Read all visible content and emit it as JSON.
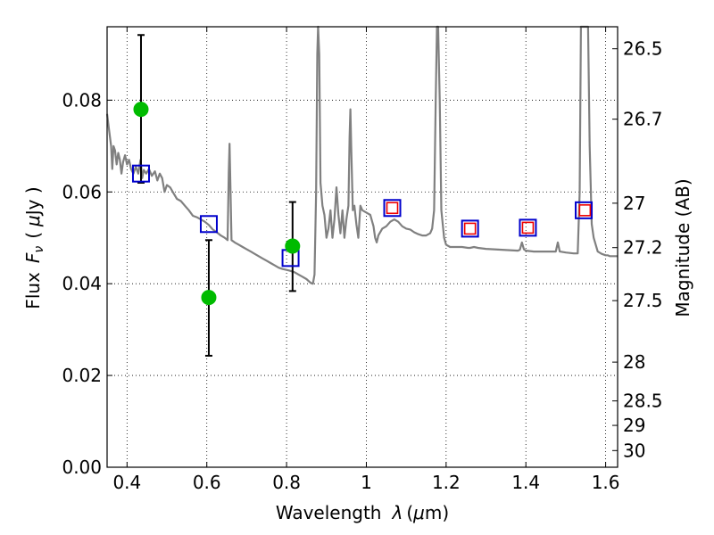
{
  "chart_data": {
    "type": "scatter",
    "xlabel": "Wavelength",
    "xlabel_symbol": "λ",
    "xlabel_unit_open": "(",
    "xlabel_unit_mu": "μ",
    "xlabel_unit_rest": "m)",
    "ylabel": "Flux",
    "ylabel_symbol": "F",
    "ylabel_subscript": "ν",
    "ylabel_unit_open": "(",
    "ylabel_unit_mu": "μ",
    "ylabel_unit_rest": "Jy )",
    "y2label": "Magnitude (AB)",
    "xlim": [
      0.35,
      1.63
    ],
    "ylim": [
      0.0,
      0.096
    ],
    "grid": true,
    "x_ticks": [
      {
        "value": 0.4,
        "label": "0.4"
      },
      {
        "value": 0.6,
        "label": "0.6"
      },
      {
        "value": 0.8,
        "label": "0.8"
      },
      {
        "value": 1.0,
        "label": "1"
      },
      {
        "value": 1.2,
        "label": "1.2"
      },
      {
        "value": 1.4,
        "label": "1.4"
      },
      {
        "value": 1.6,
        "label": "1.6"
      }
    ],
    "y_ticks": [
      {
        "value": 0.0,
        "label": "0.00"
      },
      {
        "value": 0.02,
        "label": "0.02"
      },
      {
        "value": 0.04,
        "label": "0.04"
      },
      {
        "value": 0.06,
        "label": "0.06"
      },
      {
        "value": 0.08,
        "label": "0.08"
      }
    ],
    "y2_ticks": [
      {
        "mag": 26.5,
        "label": "26.5"
      },
      {
        "mag": 26.7,
        "label": "26.7"
      },
      {
        "mag": 27.0,
        "label": "27"
      },
      {
        "mag": 27.2,
        "label": "27.2"
      },
      {
        "mag": 27.5,
        "label": "27.5"
      },
      {
        "mag": 28.0,
        "label": "28"
      },
      {
        "mag": 28.5,
        "label": "28.5"
      },
      {
        "mag": 29.0,
        "label": "29"
      },
      {
        "mag": 30.0,
        "label": "30"
      }
    ],
    "series": [
      {
        "kind": "model-sed",
        "color": "#808080",
        "points": [
          [
            0.35,
            0.077
          ],
          [
            0.355,
            0.0735
          ],
          [
            0.36,
            0.07
          ],
          [
            0.363,
            0.065
          ],
          [
            0.366,
            0.07
          ],
          [
            0.37,
            0.069
          ],
          [
            0.374,
            0.066
          ],
          [
            0.378,
            0.0685
          ],
          [
            0.382,
            0.067
          ],
          [
            0.386,
            0.064
          ],
          [
            0.39,
            0.0665
          ],
          [
            0.395,
            0.068
          ],
          [
            0.4,
            0.066
          ],
          [
            0.405,
            0.067
          ],
          [
            0.41,
            0.065
          ],
          [
            0.416,
            0.064
          ],
          [
            0.422,
            0.0655
          ],
          [
            0.428,
            0.064
          ],
          [
            0.434,
            0.067
          ],
          [
            0.438,
            0.063
          ],
          [
            0.442,
            0.0648
          ],
          [
            0.448,
            0.064
          ],
          [
            0.455,
            0.065
          ],
          [
            0.462,
            0.0635
          ],
          [
            0.47,
            0.0645
          ],
          [
            0.476,
            0.0625
          ],
          [
            0.482,
            0.064
          ],
          [
            0.488,
            0.063
          ],
          [
            0.494,
            0.06
          ],
          [
            0.5,
            0.0615
          ],
          [
            0.508,
            0.061
          ],
          [
            0.516,
            0.0598
          ],
          [
            0.525,
            0.0585
          ],
          [
            0.535,
            0.058
          ],
          [
            0.545,
            0.057
          ],
          [
            0.555,
            0.056
          ],
          [
            0.565,
            0.0548
          ],
          [
            0.575,
            0.0545
          ],
          [
            0.585,
            0.054
          ],
          [
            0.595,
            0.0535
          ],
          [
            0.605,
            0.0528
          ],
          [
            0.615,
            0.0518
          ],
          [
            0.625,
            0.0512
          ],
          [
            0.635,
            0.0505
          ],
          [
            0.645,
            0.05
          ],
          [
            0.652,
            0.0495
          ],
          [
            0.655,
            0.064
          ],
          [
            0.657,
            0.0705
          ],
          [
            0.659,
            0.062
          ],
          [
            0.662,
            0.0495
          ],
          [
            0.67,
            0.049
          ],
          [
            0.68,
            0.0485
          ],
          [
            0.69,
            0.048
          ],
          [
            0.7,
            0.0475
          ],
          [
            0.71,
            0.047
          ],
          [
            0.72,
            0.0465
          ],
          [
            0.73,
            0.046
          ],
          [
            0.74,
            0.0455
          ],
          [
            0.75,
            0.045
          ],
          [
            0.76,
            0.0445
          ],
          [
            0.77,
            0.044
          ],
          [
            0.78,
            0.0435
          ],
          [
            0.79,
            0.0432
          ],
          [
            0.8,
            0.043
          ],
          [
            0.81,
            0.0428
          ],
          [
            0.82,
            0.0425
          ],
          [
            0.83,
            0.042
          ],
          [
            0.84,
            0.0415
          ],
          [
            0.85,
            0.041
          ],
          [
            0.86,
            0.0402
          ],
          [
            0.866,
            0.04
          ],
          [
            0.87,
            0.042
          ],
          [
            0.874,
            0.06
          ],
          [
            0.877,
            0.09
          ],
          [
            0.879,
            0.096
          ],
          [
            0.882,
            0.09
          ],
          [
            0.885,
            0.062
          ],
          [
            0.89,
            0.057
          ],
          [
            0.895,
            0.055
          ],
          [
            0.9,
            0.05
          ],
          [
            0.905,
            0.052
          ],
          [
            0.91,
            0.056
          ],
          [
            0.915,
            0.05
          ],
          [
            0.92,
            0.054
          ],
          [
            0.925,
            0.061
          ],
          [
            0.93,
            0.055
          ],
          [
            0.935,
            0.051
          ],
          [
            0.94,
            0.056
          ],
          [
            0.945,
            0.05
          ],
          [
            0.95,
            0.054
          ],
          [
            0.955,
            0.057
          ],
          [
            0.958,
            0.072
          ],
          [
            0.96,
            0.078
          ],
          [
            0.962,
            0.07
          ],
          [
            0.966,
            0.056
          ],
          [
            0.97,
            0.057
          ],
          [
            0.975,
            0.053
          ],
          [
            0.98,
            0.05
          ],
          [
            0.985,
            0.057
          ],
          [
            0.99,
            0.056
          ],
          [
            1.0,
            0.0555
          ],
          [
            1.01,
            0.055
          ],
          [
            1.018,
            0.0525
          ],
          [
            1.022,
            0.05
          ],
          [
            1.026,
            0.049
          ],
          [
            1.03,
            0.0505
          ],
          [
            1.04,
            0.052
          ],
          [
            1.05,
            0.0525
          ],
          [
            1.06,
            0.0535
          ],
          [
            1.07,
            0.054
          ],
          [
            1.08,
            0.0535
          ],
          [
            1.09,
            0.0525
          ],
          [
            1.1,
            0.052
          ],
          [
            1.11,
            0.0518
          ],
          [
            1.12,
            0.0512
          ],
          [
            1.13,
            0.0508
          ],
          [
            1.14,
            0.0505
          ],
          [
            1.15,
            0.0505
          ],
          [
            1.16,
            0.051
          ],
          [
            1.165,
            0.052
          ],
          [
            1.17,
            0.056
          ],
          [
            1.174,
            0.08
          ],
          [
            1.177,
            0.096
          ],
          [
            1.18,
            0.096
          ],
          [
            1.184,
            0.08
          ],
          [
            1.188,
            0.056
          ],
          [
            1.195,
            0.05
          ],
          [
            1.2,
            0.0485
          ],
          [
            1.21,
            0.048
          ],
          [
            1.22,
            0.048
          ],
          [
            1.24,
            0.048
          ],
          [
            1.255,
            0.0478
          ],
          [
            1.26,
            0.0478
          ],
          [
            1.27,
            0.048
          ],
          [
            1.28,
            0.0478
          ],
          [
            1.3,
            0.0476
          ],
          [
            1.32,
            0.0475
          ],
          [
            1.34,
            0.0474
          ],
          [
            1.36,
            0.0473
          ],
          [
            1.38,
            0.0472
          ],
          [
            1.385,
            0.0474
          ],
          [
            1.39,
            0.049
          ],
          [
            1.395,
            0.0475
          ],
          [
            1.4,
            0.0472
          ],
          [
            1.42,
            0.047
          ],
          [
            1.44,
            0.047
          ],
          [
            1.46,
            0.047
          ],
          [
            1.475,
            0.047
          ],
          [
            1.48,
            0.049
          ],
          [
            1.485,
            0.047
          ],
          [
            1.5,
            0.0468
          ],
          [
            1.52,
            0.0466
          ],
          [
            1.53,
            0.0466
          ],
          [
            1.535,
            0.06
          ],
          [
            1.538,
            0.096
          ],
          [
            1.542,
            0.096
          ],
          [
            1.548,
            0.096
          ],
          [
            1.552,
            0.096
          ],
          [
            1.556,
            0.096
          ],
          [
            1.56,
            0.07
          ],
          [
            1.565,
            0.053
          ],
          [
            1.57,
            0.05
          ],
          [
            1.58,
            0.047
          ],
          [
            1.59,
            0.0465
          ],
          [
            1.6,
            0.0462
          ],
          [
            1.605,
            0.0462
          ],
          [
            1.61,
            0.046
          ],
          [
            1.62,
            0.046
          ],
          [
            1.63,
            0.046
          ]
        ]
      },
      {
        "kind": "observed",
        "marker": "filled-circle",
        "color": "#00bb00",
        "points": [
          {
            "x": 0.435,
            "y": 0.078,
            "yerr_low": 0.062,
            "yerr_high": 0.0942
          },
          {
            "x": 0.605,
            "y": 0.037,
            "yerr_low": 0.0243,
            "yerr_high": 0.0495
          },
          {
            "x": 0.815,
            "y": 0.0482,
            "yerr_low": 0.0384,
            "yerr_high": 0.0578
          }
        ]
      },
      {
        "kind": "model-band",
        "marker": "open-square",
        "color": "#0000cc",
        "points": [
          {
            "x": 0.435,
            "y": 0.064
          },
          {
            "x": 0.605,
            "y": 0.053
          },
          {
            "x": 0.81,
            "y": 0.0456
          },
          {
            "x": 1.065,
            "y": 0.0565
          },
          {
            "x": 1.26,
            "y": 0.052
          },
          {
            "x": 1.405,
            "y": 0.0522
          },
          {
            "x": 1.545,
            "y": 0.056
          }
        ]
      },
      {
        "kind": "model-band-inner",
        "marker": "open-square-small",
        "color": "#ee0000",
        "points": [
          {
            "x": 1.065,
            "y": 0.0565
          },
          {
            "x": 1.26,
            "y": 0.052
          },
          {
            "x": 1.405,
            "y": 0.0522
          },
          {
            "x": 1.548,
            "y": 0.056
          }
        ]
      }
    ]
  }
}
